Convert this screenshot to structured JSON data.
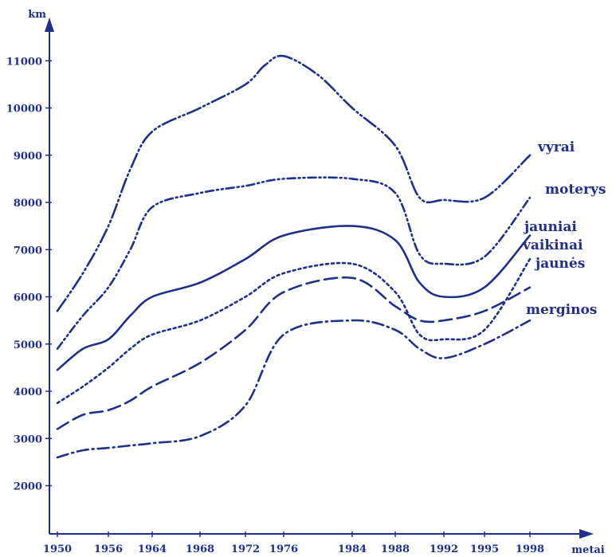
{
  "chart_data": {
    "type": "line",
    "title": "",
    "ylabel": "km",
    "xlabel": "metai",
    "ylim": [
      1500,
      11300
    ],
    "x_ticks": [
      "1950",
      "1956",
      "1964",
      "1968",
      "1972",
      "1976",
      "1984",
      "1988",
      "1992",
      "1995",
      "1998"
    ],
    "y_ticks": [
      2000,
      3000,
      4000,
      5000,
      6000,
      7000,
      8000,
      9000,
      10000,
      11000
    ],
    "grid": false,
    "legend": "labels at line ends (right)",
    "color": "#1f2f8a",
    "series": [
      {
        "name": "vyrai",
        "x": [
          "1950",
          "1953",
          "1956",
          "1960",
          "1964",
          "1968",
          "1972",
          "1974",
          "1976",
          "1980",
          "1984",
          "1988",
          "1990",
          "1992",
          "1995",
          "1998"
        ],
        "y": [
          5700,
          6500,
          7500,
          8700,
          9500,
          10000,
          10500,
          10900,
          11100,
          10700,
          10000,
          9200,
          8100,
          8050,
          8100,
          9000
        ]
      },
      {
        "name": "moterys",
        "x": [
          "1950",
          "1953",
          "1956",
          "1960",
          "1964",
          "1968",
          "1972",
          "1976",
          "1984",
          "1988",
          "1990",
          "1992",
          "1995",
          "1998"
        ],
        "y": [
          4900,
          5600,
          6200,
          7000,
          7900,
          8200,
          8350,
          8500,
          8500,
          8200,
          6900,
          6700,
          6850,
          8100
        ]
      },
      {
        "name": "jauniai",
        "x": [
          "1950",
          "1953",
          "1956",
          "1960",
          "1964",
          "1968",
          "1972",
          "1976",
          "1984",
          "1988",
          "1990",
          "1992",
          "1995",
          "1998"
        ],
        "y": [
          4450,
          4900,
          5100,
          5600,
          6000,
          6300,
          6800,
          7300,
          7500,
          7200,
          6300,
          6000,
          6200,
          7300
        ]
      },
      {
        "name": "vaikinai",
        "x": [
          "1950",
          "1953",
          "1956",
          "1960",
          "1964",
          "1968",
          "1972",
          "1976",
          "1984",
          "1988",
          "1990",
          "1992",
          "1995",
          "1998"
        ],
        "y": [
          3750,
          4100,
          4500,
          4900,
          5200,
          5500,
          6000,
          6500,
          6700,
          6100,
          5200,
          5100,
          5300,
          6800
        ]
      },
      {
        "name": "jaunės",
        "x": [
          "1950",
          "1953",
          "1956",
          "1960",
          "1964",
          "1968",
          "1972",
          "1976",
          "1984",
          "1988",
          "1990",
          "1992",
          "1995",
          "1998"
        ],
        "y": [
          3200,
          3500,
          3600,
          3800,
          4100,
          4600,
          5300,
          6100,
          6400,
          5800,
          5500,
          5500,
          5700,
          6200
        ]
      },
      {
        "name": "merginos",
        "x": [
          "1950",
          "1953",
          "1956",
          "1960",
          "1964",
          "1968",
          "1972",
          "1976",
          "1984",
          "1988",
          "1990",
          "1992",
          "1995",
          "1998"
        ],
        "y": [
          2600,
          2750,
          2800,
          2850,
          2900,
          3050,
          3700,
          5200,
          5500,
          5300,
          4900,
          4700,
          5000,
          5500
        ]
      }
    ]
  }
}
